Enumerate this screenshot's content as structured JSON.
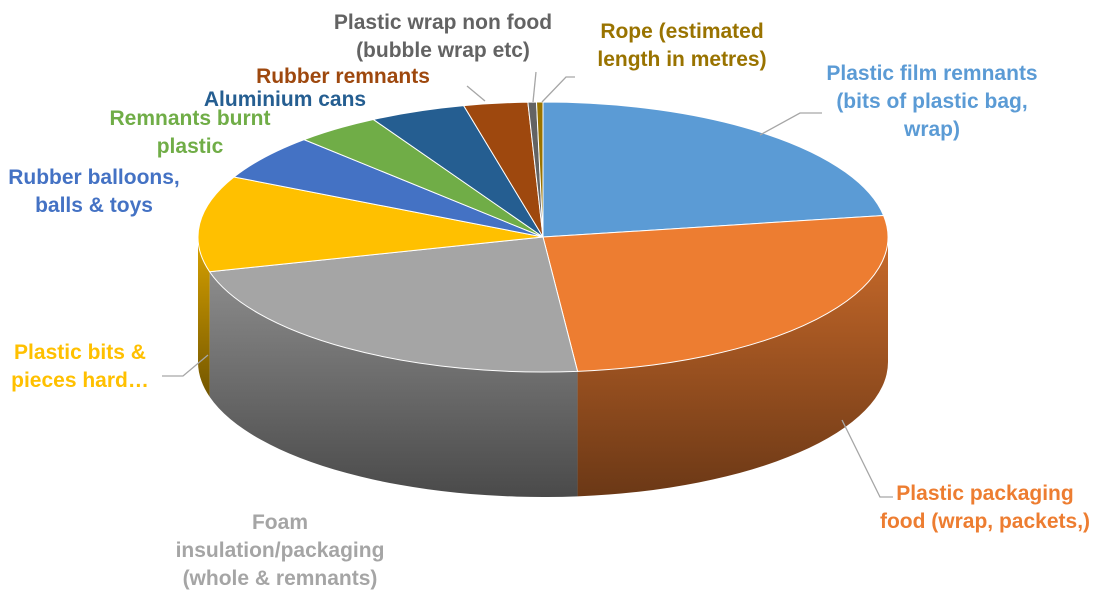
{
  "chart_data": {
    "type": "pie",
    "style": "3d",
    "legend": "none",
    "title": "",
    "categories": [
      "Plastic film remnants (bits of plastic bag, wrap)",
      "Plastic packaging food (wrap, packets,)",
      "Foam insulation/packaging (whole & remnants)",
      "Plastic bits & pieces hard…",
      "Rubber balloons, balls & toys",
      "Remnants burnt plastic",
      "Aluminium cans",
      "Rubber remnants",
      "Plastic wrap non food (bubble wrap etc)",
      "Rope (estimated length in metres)"
    ],
    "values": [
      22.5,
      26.0,
      22.5,
      11.5,
      5.5,
      4.0,
      4.5,
      3.0,
      0.4,
      0.3
    ],
    "colors": [
      "#5B9BD5",
      "#ED7D31",
      "#A5A5A5",
      "#FFC000",
      "#4472C4",
      "#70AD47",
      "#255E91",
      "#9E480E",
      "#636363",
      "#997300"
    ],
    "label_lines": [
      [
        "Plastic film remnants",
        "(bits of plastic bag,",
        "wrap)"
      ],
      [
        "Plastic packaging",
        "food (wrap, packets,)"
      ],
      [
        "Foam",
        "insulation/packaging",
        "(whole & remnants)"
      ],
      [
        "Plastic bits &",
        "pieces hard…"
      ],
      [
        "Rubber balloons,",
        "balls & toys"
      ],
      [
        "Remnants burnt",
        "plastic"
      ],
      [
        "Aluminium cans"
      ],
      [
        "Rubber remnants"
      ],
      [
        "Plastic wrap non food",
        "(bubble wrap etc)"
      ],
      [
        "Rope (estimated",
        "length in metres)"
      ]
    ]
  }
}
